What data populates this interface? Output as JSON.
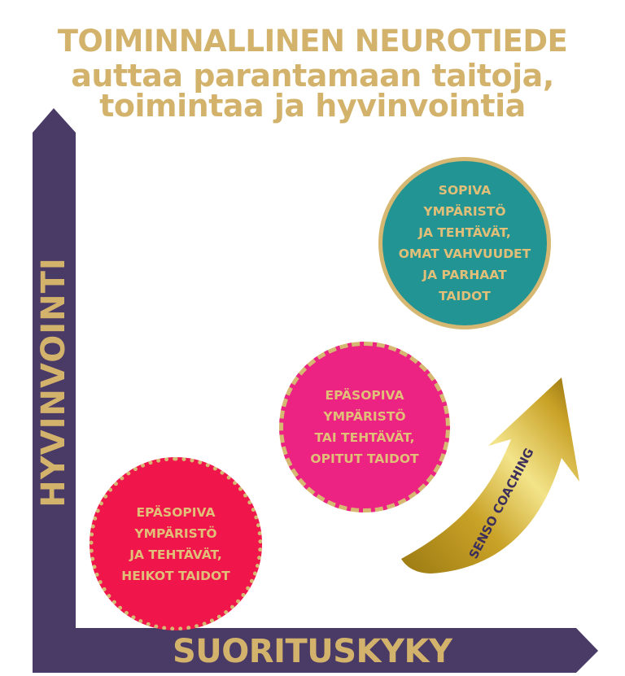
{
  "title": {
    "line1": "TOIMINNALLINEN NEUROTIEDE",
    "line2": "auttaa parantamaan taitoja,",
    "line3": "toimintaa ja hyvinvointia"
  },
  "axes": {
    "y_label": "HYVINVOINTI",
    "x_label": "SUORITUSKYKY",
    "color": "#4a3a66"
  },
  "circles": [
    {
      "text": "SOPIVA\nYMPÄRISTÖ\nJA TEHTÄVÄT,\nOMAT VAHVUUDET\nJA PARHAAT\nTAIDOT",
      "color": "#229494",
      "border": "solid"
    },
    {
      "text": "EPÄSOPIVA\nYMPÄRISTÖ\nTAI TEHTÄVÄT,\nOPITUT TAIDOT",
      "color": "#ec2382",
      "border": "dashed"
    },
    {
      "text": "EPÄSOPIVA\nYMPÄRISTÖ\nJA TEHTÄVÄT,\nHEIKOT TAIDOT",
      "color": "#f0164b",
      "border": "dotted"
    }
  ],
  "arrow": {
    "label": "SENSO COACHING",
    "color": "#c9a227"
  },
  "accent_color": "#d3b36c"
}
